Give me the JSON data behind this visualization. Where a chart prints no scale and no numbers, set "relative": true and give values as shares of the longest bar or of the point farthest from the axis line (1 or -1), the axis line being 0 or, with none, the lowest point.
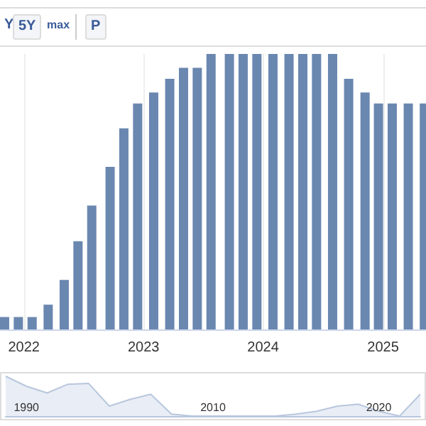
{
  "chart_data": [
    {
      "type": "bar",
      "relative": true,
      "color": "#6a87b0",
      "grid": "x",
      "annotations": [
        "Y",
        "5Y",
        "max",
        "P"
      ],
      "x": [
        "2021-11-03",
        "2021-12-15",
        "2022-01-26",
        "2022-03-16",
        "2022-05-04",
        "2022-06-15",
        "2022-07-27",
        "2022-09-21",
        "2022-11-02",
        "2022-12-14",
        "2023-02-01",
        "2023-03-22",
        "2023-05-03",
        "2023-06-14",
        "2023-07-26",
        "2023-09-20",
        "2023-11-01",
        "2023-12-13",
        "2024-01-31",
        "2024-03-20",
        "2024-05-01",
        "2024-06-12",
        "2024-07-31",
        "2024-09-18",
        "2024-11-07",
        "2024-12-18",
        "2025-01-29",
        "2025-03-19",
        "2025-05-07"
      ],
      "values": [
        0.045,
        0.045,
        0.045,
        0.09,
        0.18,
        0.32,
        0.45,
        0.59,
        0.73,
        0.82,
        0.86,
        0.91,
        0.95,
        0.95,
        1,
        1,
        1,
        1,
        1,
        1,
        1,
        1,
        1,
        0.91,
        0.86,
        0.82,
        0.82,
        0.82,
        0.82
      ],
      "xlim": [
        "2021-10-20",
        "2025-05-12"
      ],
      "xticks": [
        "2022",
        "2023",
        "2024",
        "2025"
      ]
    },
    {
      "type": "area",
      "relative": true,
      "color": "#b8c7dd",
      "categories": [
        null,
        "1990",
        null,
        null,
        null,
        null,
        null,
        null,
        null,
        null,
        "2010",
        null,
        null,
        null,
        null,
        null,
        null,
        null,
        "2020",
        null,
        null
      ],
      "values": [
        1,
        0.75,
        0.58,
        0.8,
        0.82,
        0.25,
        0.42,
        0.55,
        0.05,
        0,
        0,
        0,
        0,
        0,
        0.05,
        0.12,
        0.25,
        0.3,
        0.12,
        0,
        0.55
      ]
    }
  ]
}
